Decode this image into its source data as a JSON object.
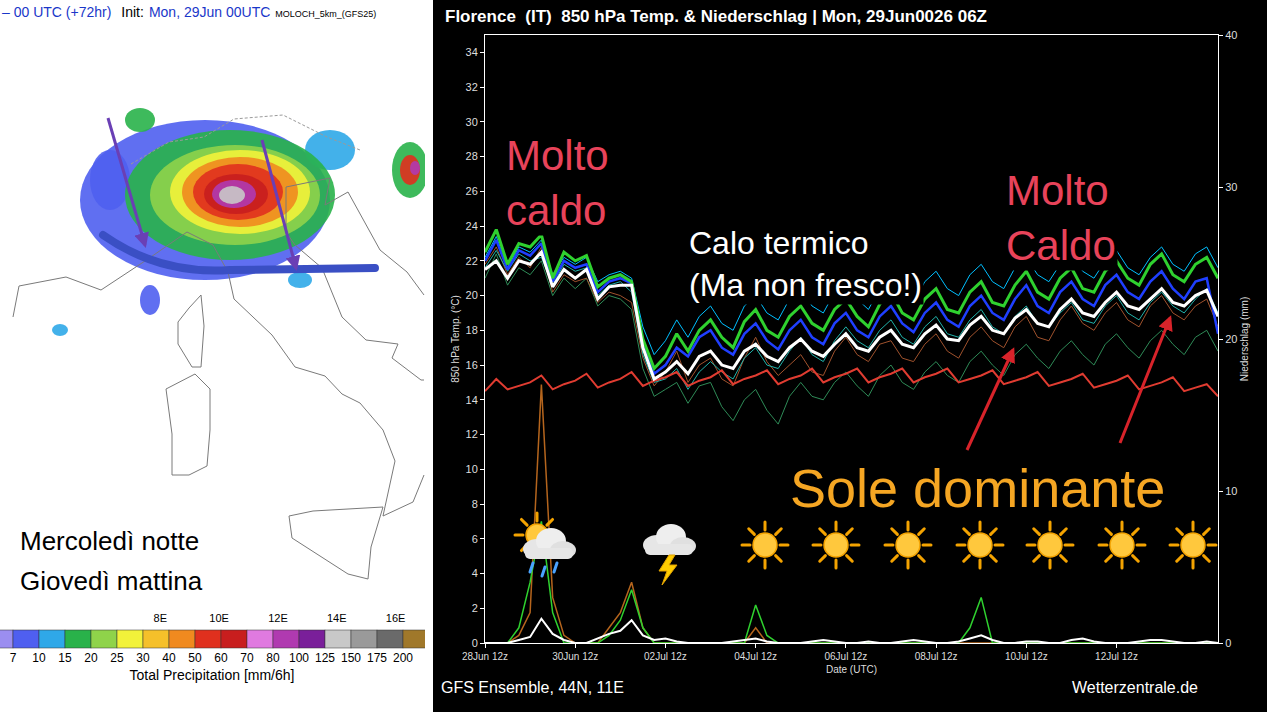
{
  "map_panel": {
    "header": {
      "valid": "– 00 UTC (+72hr)",
      "init_label": "Init:",
      "init": "Mon, 29Jun 00UTC",
      "model": "MOLOCH_5km_(GFS25)"
    },
    "annotation": [
      "Mercoledì notte",
      "Giovedì mattina"
    ],
    "xlim": [
      2.55,
      17.0
    ],
    "lon_ticks": [
      {
        "value": 8,
        "label": "8E"
      },
      {
        "value": 10,
        "label": "10E"
      },
      {
        "value": 12,
        "label": "12E"
      },
      {
        "value": 14,
        "label": "14E"
      },
      {
        "value": 16,
        "label": "16E"
      }
    ],
    "colorbar": {
      "title": "Total Precipitation [mm/6h]",
      "levels": [
        7,
        10,
        15,
        20,
        25,
        30,
        40,
        50,
        60,
        70,
        80,
        100,
        125,
        150,
        175,
        200
      ],
      "colors": [
        "#9b8ef0",
        "#4f5ff0",
        "#2fa8e8",
        "#29b24a",
        "#8fd34a",
        "#f2f23a",
        "#f5c02a",
        "#f08a1f",
        "#e0301e",
        "#c81e1e",
        "#e07ae0",
        "#b03ab0",
        "#7a1f9a",
        "#c8c8c8",
        "#9a9a9a",
        "#6a6a6a",
        "#a0782a"
      ]
    }
  },
  "chart_data": {
    "type": "line",
    "title": "Florence  (IT)  850 hPa Temp. & Niederschlag | Mon, 29Jun0026 06Z",
    "x_label": "Date (UTC)",
    "y_label": "850 hPa Temp. (°C)",
    "y2_label": "Niederschlag (mm)",
    "categories": [
      "28Jun 12z",
      null,
      null,
      null,
      null,
      null,
      null,
      null,
      "30Jun 12z",
      null,
      null,
      null,
      null,
      null,
      null,
      null,
      "02Jul 12z",
      null,
      null,
      null,
      null,
      null,
      null,
      null,
      "04Jul 12z",
      null,
      null,
      null,
      null,
      null,
      null,
      null,
      "06Jul 12z",
      null,
      null,
      null,
      null,
      null,
      null,
      null,
      "08Jul 12z",
      null,
      null,
      null,
      null,
      null,
      null,
      null,
      "10Jul 12z",
      null,
      null,
      null,
      null,
      null,
      null,
      null,
      "12Jul 12z",
      null,
      null,
      null,
      null,
      null,
      null,
      null,
      null,
      null
    ],
    "ylim": [
      0,
      35
    ],
    "yticks": [
      0,
      2,
      4,
      6,
      8,
      10,
      12,
      14,
      16,
      18,
      20,
      22,
      24,
      26,
      28,
      30,
      32,
      34
    ],
    "y2lim": [
      0,
      40
    ],
    "y2ticks": [
      0,
      10,
      20,
      30,
      40
    ],
    "grid": false,
    "series": [
      {
        "color": "#2e8b57",
        "values": [
          21.0,
          22.4,
          20.6,
          21.6,
          21.2,
          22.0,
          20.0,
          21.0,
          20.4,
          21.0,
          19.4,
          20.0,
          19.8,
          19.2,
          15.8,
          14.2,
          14.6,
          15.0,
          13.8,
          14.8,
          15.0,
          13.6,
          12.8,
          14.0,
          14.6,
          13.4,
          12.6,
          14.2,
          15.0,
          14.2,
          14.0,
          15.0,
          15.6,
          14.8,
          14.2,
          15.4,
          16.0,
          15.0,
          14.6,
          15.6,
          16.2,
          15.4,
          15.0,
          16.2,
          16.8,
          16.0,
          15.4,
          16.6,
          17.2,
          16.4,
          15.8,
          16.8,
          17.4,
          16.6,
          16.0,
          17.2,
          17.8,
          17.0,
          16.4,
          17.4,
          18.0,
          17.2,
          16.6,
          17.6,
          18.0,
          16.8
        ]
      },
      {
        "color": "#00bfff",
        "values": [
          22.2,
          23.4,
          21.6,
          22.8,
          22.5,
          23.2,
          21.2,
          22.2,
          21.8,
          22.2,
          20.8,
          21.2,
          21.4,
          21.0,
          18.2,
          16.6,
          17.4,
          18.6,
          17.6,
          18.8,
          19.4,
          18.4,
          18.0,
          19.4,
          20.0,
          19.0,
          18.6,
          19.8,
          20.4,
          19.4,
          19.0,
          20.2,
          20.8,
          19.8,
          19.2,
          20.4,
          21.0,
          20.0,
          19.6,
          20.8,
          21.4,
          20.4,
          20.0,
          21.2,
          21.8,
          20.8,
          20.4,
          21.6,
          22.2,
          21.2,
          20.8,
          21.8,
          22.4,
          21.4,
          21.0,
          22.0,
          22.6,
          21.6,
          21.2,
          22.2,
          22.8,
          21.8,
          21.4,
          22.4,
          22.8,
          21.6
        ]
      },
      {
        "color": "#a0522d",
        "values": [
          21.8,
          22.8,
          21.2,
          22.2,
          21.6,
          22.8,
          20.2,
          21.2,
          20.8,
          21.0,
          19.6,
          20.2,
          20.0,
          19.6,
          16.4,
          14.8,
          15.6,
          16.8,
          15.0,
          16.0,
          16.4,
          15.2,
          14.8,
          16.4,
          17.6,
          16.2,
          15.4,
          16.0,
          16.6,
          15.6,
          15.4,
          16.8,
          17.6,
          16.6,
          16.2,
          17.2,
          17.4,
          16.4,
          16.2,
          17.2,
          17.8,
          16.8,
          16.4,
          17.6,
          18.2,
          17.4,
          17.0,
          18.2,
          18.8,
          17.6,
          17.4,
          18.6,
          19.4,
          18.4,
          18.0,
          19.0,
          19.6,
          18.6,
          18.2,
          19.4,
          20.0,
          19.0,
          18.6,
          19.4,
          19.8,
          18.2
        ]
      },
      {
        "color": "#20b2aa",
        "values": [
          21.6,
          22.6,
          21.4,
          22.4,
          22.0,
          22.2,
          20.6,
          21.8,
          21.4,
          21.6,
          20.0,
          20.6,
          20.8,
          20.2,
          16.6,
          15.0,
          15.2,
          15.8,
          14.6,
          15.6,
          16.2,
          15.6,
          15.2,
          16.4,
          17.0,
          16.0,
          15.8,
          16.8,
          17.6,
          16.6,
          16.2,
          17.4,
          18.2,
          17.4,
          17.0,
          18.0,
          18.6,
          17.6,
          17.2,
          18.2,
          18.8,
          17.8,
          17.6,
          18.6,
          19.2,
          18.2,
          17.8,
          18.8,
          19.4,
          18.4,
          18.2,
          19.0,
          19.6,
          18.6,
          18.4,
          19.4,
          20.0,
          19.0,
          18.6,
          19.6,
          20.2,
          19.4,
          19.0,
          19.8,
          20.4,
          19.0
        ]
      },
      {
        "color": "#e03c31",
        "values": [
          14.5,
          15.2,
          14.6,
          14.8,
          15.0,
          15.4,
          14.6,
          14.9,
          15.1,
          15.5,
          14.7,
          15.0,
          15.2,
          15.6,
          14.8,
          15.1,
          15.3,
          15.6,
          14.8,
          15.1,
          15.3,
          15.7,
          14.9,
          15.2,
          15.4,
          15.7,
          14.9,
          15.2,
          15.4,
          15.8,
          15.0,
          15.3,
          15.5,
          15.8,
          15.0,
          15.3,
          15.5,
          15.8,
          15.0,
          15.3,
          15.5,
          15.8,
          15.0,
          15.2,
          15.4,
          15.7,
          14.9,
          15.1,
          15.3,
          15.6,
          14.8,
          15.0,
          15.2,
          15.5,
          14.7,
          14.9,
          15.1,
          15.4,
          14.6,
          14.8,
          15.0,
          15.3,
          14.5,
          14.7,
          14.9,
          14.2
        ]
      },
      {
        "color": "#1f3fff",
        "values": [
          22.0,
          23.2,
          21.5,
          22.6,
          22.3,
          23.0,
          20.8,
          22.0,
          21.6,
          21.8,
          20.2,
          20.8,
          21.0,
          20.7,
          17.2,
          15.5,
          16.0,
          17.0,
          16.5,
          17.6,
          18.0,
          17.0,
          16.6,
          17.8,
          18.4,
          17.4,
          16.9,
          18.0,
          18.6,
          17.6,
          17.2,
          18.4,
          19.0,
          18.0,
          17.6,
          18.8,
          19.4,
          18.4,
          17.9,
          19.0,
          19.6,
          18.6,
          18.2,
          19.4,
          20.0,
          19.0,
          18.6,
          19.8,
          20.6,
          19.4,
          19.0,
          20.2,
          20.8,
          19.8,
          19.4,
          20.6,
          21.2,
          20.2,
          19.8,
          20.8,
          21.4,
          20.4,
          19.8,
          20.8,
          21.0,
          17.8
        ]
      },
      {
        "color": "#2fd12f",
        "values": [
          22.5,
          23.8,
          21.8,
          23.0,
          22.8,
          23.5,
          21.0,
          22.5,
          22.0,
          22.3,
          20.5,
          21.0,
          21.2,
          20.8,
          17.5,
          15.8,
          16.5,
          17.8,
          16.8,
          18.0,
          18.6,
          17.6,
          17.0,
          18.5,
          19.2,
          18.0,
          17.6,
          18.8,
          19.4,
          18.4,
          18.0,
          19.2,
          19.8,
          18.8,
          18.2,
          19.5,
          20.2,
          19.0,
          18.6,
          19.8,
          20.4,
          19.2,
          19.0,
          20.2,
          20.8,
          19.6,
          19.4,
          20.6,
          21.4,
          20.2,
          19.8,
          21.0,
          21.6,
          20.4,
          20.2,
          21.4,
          22.0,
          21.0,
          20.6,
          21.8,
          22.4,
          21.2,
          20.8,
          21.8,
          22.2,
          21.0
        ]
      },
      {
        "color": "#ffffff",
        "values": [
          21.5,
          22.0,
          21.0,
          22.0,
          21.8,
          22.5,
          20.5,
          21.5,
          21.0,
          21.5,
          19.8,
          20.5,
          20.6,
          20.6,
          17.0,
          15.2,
          15.6,
          16.2,
          15.5,
          16.5,
          16.8,
          16.0,
          15.8,
          16.8,
          17.2,
          16.5,
          16.2,
          17.0,
          17.5,
          16.8,
          16.5,
          17.2,
          17.8,
          17.0,
          16.8,
          17.6,
          18.0,
          17.2,
          17.0,
          17.8,
          18.3,
          17.5,
          17.4,
          18.3,
          18.8,
          18.0,
          17.8,
          18.7,
          19.2,
          18.4,
          18.2,
          19.2,
          19.8,
          19.0,
          18.8,
          19.6,
          20.2,
          19.4,
          19.2,
          19.8,
          20.4,
          19.6,
          19.4,
          20.0,
          20.3,
          18.8
        ]
      },
      {
        "color": "#b5651d",
        "axis": "y2",
        "values": [
          0,
          0,
          0,
          0.5,
          2,
          17,
          3,
          0.5,
          0,
          0,
          0,
          1,
          2,
          4,
          1,
          0,
          0,
          0,
          0,
          0,
          0,
          0,
          0,
          0,
          1,
          0,
          0,
          0,
          0,
          0,
          0,
          0,
          0,
          0,
          0,
          0,
          0,
          0,
          0,
          0,
          0,
          0,
          0,
          0,
          0,
          0,
          0,
          0,
          0,
          0,
          0,
          0,
          0,
          0,
          0,
          0,
          0,
          0,
          0,
          0,
          0,
          0,
          0,
          0,
          0,
          0
        ]
      },
      {
        "color": "#2fd12f",
        "axis": "y2",
        "values": [
          0,
          0,
          0,
          1,
          4,
          8,
          2,
          0,
          0,
          0,
          0,
          0.5,
          1.5,
          3.5,
          1,
          0,
          0,
          0,
          0,
          0,
          0,
          0,
          0,
          0,
          2.5,
          0.5,
          0,
          0,
          0,
          0,
          0,
          0,
          0,
          0,
          0,
          0,
          0,
          0,
          0,
          0,
          0,
          0,
          0,
          1,
          3,
          0,
          0,
          0,
          0,
          0,
          0,
          0,
          0,
          0,
          0,
          0,
          0,
          0,
          0,
          0,
          0,
          0,
          0,
          0,
          0,
          0
        ]
      },
      {
        "color": "#ffffff",
        "axis": "y2",
        "values": [
          0,
          0,
          0,
          0.2,
          0.4,
          1.6,
          0.6,
          0.2,
          0,
          0,
          0.3,
          0.6,
          0.8,
          1.5,
          0.5,
          0.2,
          0.3,
          0.1,
          0,
          0,
          0,
          0,
          0.1,
          0.2,
          0.3,
          0.1,
          0,
          0,
          0,
          0.1,
          0.2,
          0.1,
          0,
          0,
          0.1,
          0,
          0,
          0.1,
          0.2,
          0.1,
          0,
          0,
          0.1,
          0.3,
          0.5,
          0.2,
          0,
          0,
          0.1,
          0.1,
          0,
          0,
          0.2,
          0.3,
          0.1,
          0,
          0,
          0,
          0.1,
          0.2,
          0.2,
          0.1,
          0,
          0,
          0.1,
          0
        ]
      }
    ],
    "annotations": [
      {
        "text": [
          "Molto",
          "caldo"
        ],
        "color": "#e8435a"
      },
      {
        "text": [
          "Calo termico",
          "(Ma non fresco!)"
        ],
        "color": "#ffffff"
      },
      {
        "text": [
          "Molto",
          "Caldo"
        ],
        "color": "#e8435a"
      },
      {
        "text": [
          "Sole dominante"
        ],
        "color": "#f5a623"
      }
    ],
    "source": "GFS Ensemble, 44N, 11E",
    "credit": "Wetterzentrale.de"
  }
}
